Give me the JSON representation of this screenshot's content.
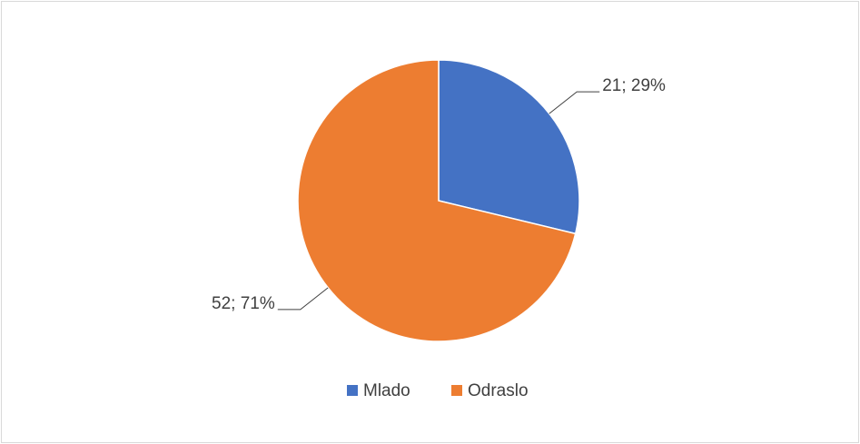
{
  "chart_data": {
    "type": "pie",
    "categories": [
      "Mlado",
      "Odraslo"
    ],
    "values": [
      21,
      52
    ],
    "value_labels": [
      "21; 29%",
      "52; 71%"
    ],
    "colors": [
      "#4472c4",
      "#ed7d31"
    ],
    "legend": "bottom"
  }
}
